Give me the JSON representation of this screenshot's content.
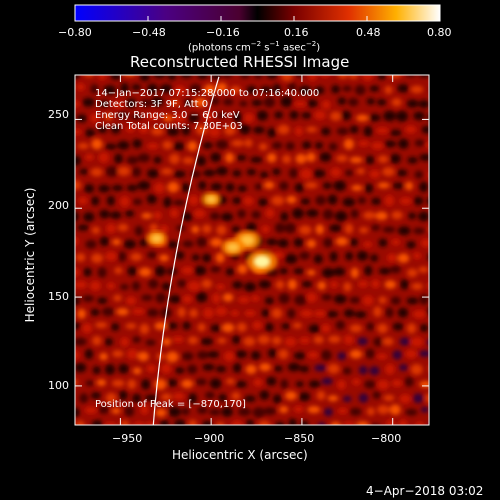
{
  "chart_data": {
    "type": "heatmap",
    "title": "Reconstructed RHESSI Image",
    "xlabel": "Heliocentric X (arcsec)",
    "ylabel": "Heliocentric Y (arcsec)",
    "xlim": [
      -975,
      -780
    ],
    "ylim": [
      78,
      275
    ],
    "x_ticks": [
      -950,
      -900,
      -850,
      -800
    ],
    "y_ticks": [
      100,
      150,
      200,
      250
    ],
    "x_tick_labels": [
      "−950",
      "−900",
      "−850",
      "−800"
    ],
    "y_tick_labels": [
      "100",
      "150",
      "200",
      "250"
    ],
    "colorbar": {
      "range": [
        -0.8,
        0.8
      ],
      "ticks": [
        -0.8,
        -0.48,
        -0.16,
        0.16,
        0.48,
        0.8
      ],
      "tick_labels": [
        "−0.80",
        "−0.48",
        "−0.16",
        "0.16",
        "0.48",
        "0.80"
      ],
      "unit_prefix": "(photons cm",
      "unit_exp1": "−2",
      "unit_mid": " s",
      "unit_exp2": "−1",
      "unit_mid2": " asec",
      "unit_exp3": "−2",
      "unit_suffix": ")"
    },
    "info": [
      "14−Jan−2017 07:15:28.000 to 07:16:40.000",
      "Detectors: 3F 9F, Att 0",
      "Energy Range: 3.0 − 6.0 keV",
      "Clean    Total counts: 7.30E+03"
    ],
    "peak_label": "Position of Peak = [−870,170]",
    "peak": [
      -870,
      170
    ],
    "sources": [
      {
        "x": -872,
        "y": 170,
        "value": 0.8
      },
      {
        "x": -880,
        "y": 182,
        "value": 0.6
      },
      {
        "x": -888,
        "y": 178,
        "value": 0.45
      },
      {
        "x": -900,
        "y": 205,
        "value": 0.3
      },
      {
        "x": -930,
        "y": 183,
        "value": 0.35
      }
    ]
  },
  "timestamp": "4−Apr−2018 03:02"
}
